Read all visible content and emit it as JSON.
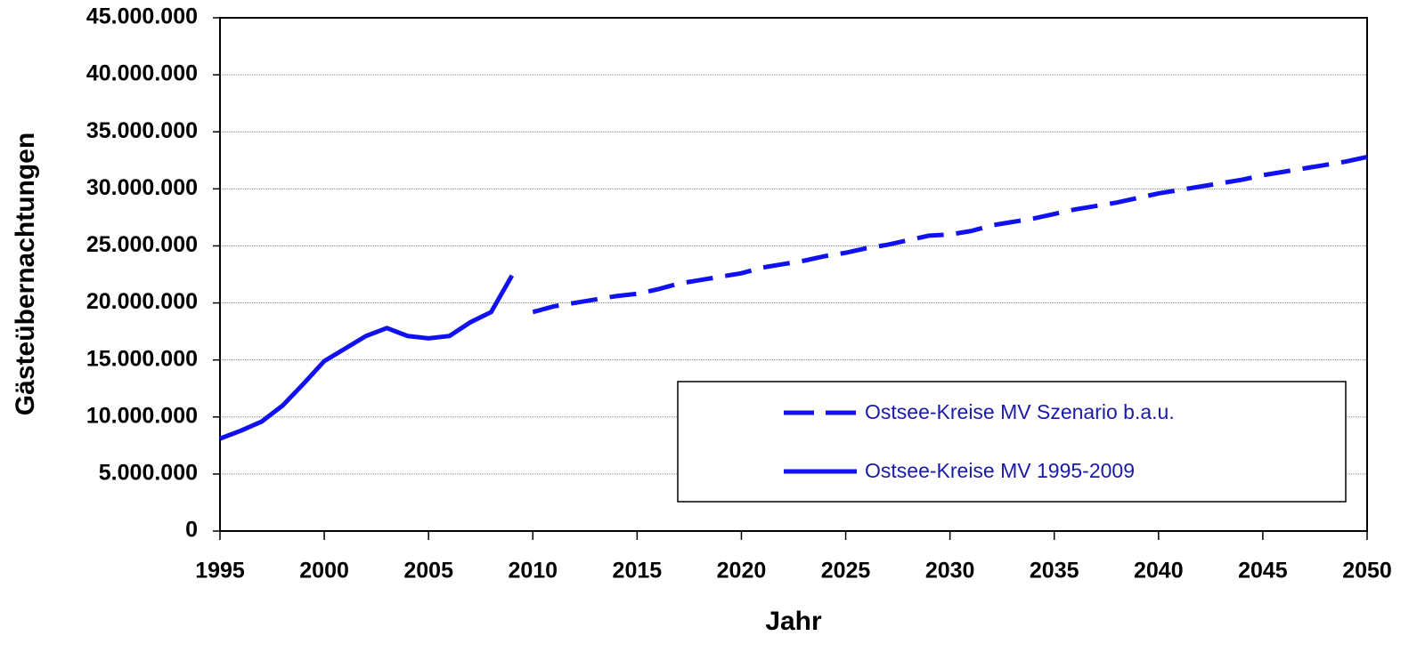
{
  "chart_data": {
    "type": "line",
    "x_label": "Jahr",
    "y_label": "Gästeübernachtungen",
    "xlim": [
      1995,
      2050
    ],
    "xticks": [
      1995,
      2000,
      2005,
      2010,
      2015,
      2020,
      2025,
      2030,
      2035,
      2040,
      2045,
      2050
    ],
    "ylim": [
      0,
      45000000
    ],
    "yticks": [
      0,
      {
        "value": 5000000,
        "label": "5.000.000"
      },
      {
        "value": 10000000,
        "label": "10.000.000"
      },
      {
        "value": 15000000,
        "label": "15.000.000"
      },
      {
        "value": 20000000,
        "label": "20.000.000"
      },
      {
        "value": 25000000,
        "label": "25.000.000"
      },
      {
        "value": 30000000,
        "label": "30.000.000"
      },
      {
        "value": 35000000,
        "label": "35.000.000"
      },
      {
        "value": 40000000,
        "label": "40.000.000"
      },
      {
        "value": 45000000,
        "label": "45.000.000"
      }
    ],
    "grid": true,
    "legend": "bottom-right",
    "series": [
      {
        "name": "Ostsee-Kreise MV Szenario b.a.u.",
        "color": "#1010f0",
        "line_style": "dashed",
        "x": [
          2010,
          2011,
          2012,
          2013,
          2014,
          2015,
          2016,
          2017,
          2018,
          2019,
          2020,
          2021,
          2022,
          2023,
          2024,
          2025,
          2026,
          2027,
          2028,
          2029,
          2030,
          2031,
          2032,
          2033,
          2034,
          2035,
          2036,
          2037,
          2038,
          2039,
          2040,
          2041,
          2042,
          2043,
          2044,
          2045,
          2046,
          2047,
          2048,
          2049,
          2050
        ],
        "values": [
          19200000,
          19700000,
          20000000,
          20300000,
          20600000,
          20800000,
          21200000,
          21700000,
          22000000,
          22300000,
          22600000,
          23100000,
          23400000,
          23700000,
          24100000,
          24400000,
          24800000,
          25100000,
          25500000,
          25900000,
          26000000,
          26300000,
          26800000,
          27100000,
          27400000,
          27800000,
          28200000,
          28500000,
          28800000,
          29200000,
          29600000,
          29900000,
          30200000,
          30500000,
          30800000,
          31200000,
          31500000,
          31800000,
          32100000,
          32400000,
          32800000
        ]
      },
      {
        "name": "Ostsee-Kreise MV 1995-2009",
        "color": "#1010f0",
        "line_style": "solid",
        "x": [
          1995,
          1996,
          1997,
          1998,
          1999,
          2000,
          2001,
          2002,
          2003,
          2004,
          2005,
          2006,
          2007,
          2008,
          2009
        ],
        "values": [
          8100000,
          8800000,
          9600000,
          11000000,
          12900000,
          14900000,
          16000000,
          17100000,
          17800000,
          17100000,
          16900000,
          17100000,
          18300000,
          19200000,
          22400000
        ]
      }
    ]
  }
}
